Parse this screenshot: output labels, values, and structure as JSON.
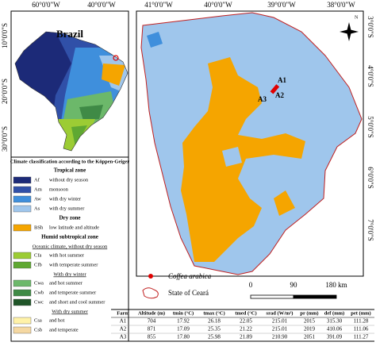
{
  "inset": {
    "title": "Brazil",
    "x_labels": [
      "60°0'0\"W",
      "40°0'0\"W"
    ],
    "y_labels": [
      "10°0'0\"S",
      "20°0'0\"S",
      "30°0'0\"S"
    ]
  },
  "legend": {
    "title": "Climate classification according to the Köppen-Geiger",
    "items": [
      {
        "heading": "Tropical zone"
      },
      {
        "code": "Af",
        "label": "without dry season",
        "color": "#1c2a78"
      },
      {
        "code": "Am",
        "label": "monsoon",
        "color": "#3050a8"
      },
      {
        "code": "Aw",
        "label": "with dry winter",
        "color": "#3f8fdc"
      },
      {
        "code": "As",
        "label": "with dry summer",
        "color": "#9fc6ec"
      },
      {
        "heading": "Dry zone"
      },
      {
        "code": "BSh",
        "label": "low latitude and altitude",
        "color": "#f5a500"
      },
      {
        "heading": "Humid subtropical zone"
      },
      {
        "subheading": "Oceanic climate, without dry season"
      },
      {
        "code": "Cfa",
        "label": "with hot summer",
        "color": "#9ccc34"
      },
      {
        "code": "Cfb",
        "label": "with temperate summer",
        "color": "#5fa832"
      },
      {
        "subheading": "With dry winter"
      },
      {
        "code": "Cwa",
        "label": "and hot summer",
        "color": "#6cb86a"
      },
      {
        "code": "Cwb",
        "label": "and temperate summer",
        "color": "#3f8a46"
      },
      {
        "code": "Cwc",
        "label": "and short and cool summer",
        "color": "#1f5528"
      },
      {
        "subheading": "With dry summer"
      },
      {
        "code": "Csa",
        "label": "and hot",
        "color": "#fff2a8"
      },
      {
        "code": "Csb",
        "label": "and temperate",
        "color": "#f5d8a2"
      }
    ]
  },
  "map": {
    "x_labels": [
      "41°0'0\"W",
      "40°0'0\"W",
      "39°0'0\"W",
      "38°0'0\"W"
    ],
    "y_labels": [
      "3°0'0\"S",
      "4°0'0\"S",
      "5°0'0\"S",
      "6°0'0\"S",
      "7°0'0\"S"
    ],
    "north": "N",
    "farm_labels": [
      "A1",
      "A2",
      "A3"
    ],
    "legend": [
      "Coffea arabica",
      "State of Ceará"
    ],
    "scale": [
      "0",
      "90",
      "180 km"
    ]
  },
  "table": {
    "header": [
      "Farm",
      "Altitude (m)",
      "tmin (°C)",
      "tmax (°C)",
      "tmed (°C)",
      "srad (W/m²)",
      "pr (mm)",
      "def (mm)",
      "pet (mm)"
    ],
    "rows": [
      [
        "A1",
        "704",
        "17.92",
        "26.18",
        "22.05",
        "215.01",
        "2015",
        "315.30",
        "111.28"
      ],
      [
        "A2",
        "871",
        "17.09",
        "25.35",
        "21.22",
        "215.01",
        "2019",
        "410.06",
        "111.06"
      ],
      [
        "A3",
        "855",
        "17.80",
        "25.98",
        "21.89",
        "210.90",
        "2051",
        "391.09",
        "111.27"
      ]
    ]
  }
}
